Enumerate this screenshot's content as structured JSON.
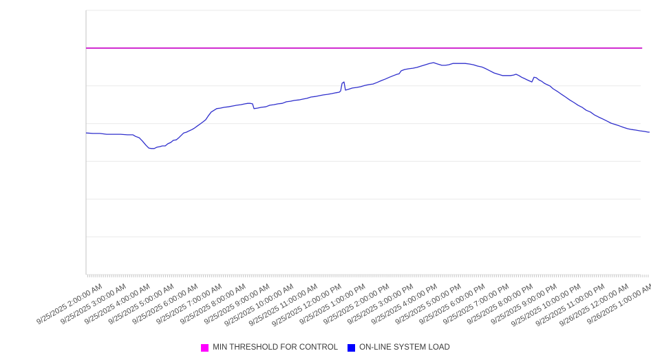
{
  "legend": {
    "items": [
      {
        "label": "MIN THRESHOLD FOR CONTROL",
        "color": "#ff00ff"
      },
      {
        "label": "ON-LINE SYSTEM LOAD",
        "color": "#0000ff"
      }
    ]
  },
  "chart_data": {
    "type": "line",
    "title": "",
    "xlabel": "",
    "ylabel": "",
    "grid": "horizontal",
    "legend_position": "bottom-center",
    "y_axis_labels_shown": false,
    "y_unit": "percent of plot height (chart shows no y-axis tick labels)",
    "x_unit": "hours since 9/25/2025 12:00:00 AM",
    "x_range": [
      1.51,
      25.06
    ],
    "ylim": [
      0,
      100
    ],
    "x_tick_hours": [
      2,
      3,
      4,
      5,
      6,
      7,
      8,
      9,
      10,
      11,
      12,
      13,
      14,
      15,
      16,
      17,
      18,
      19,
      20,
      21,
      22,
      23,
      24,
      25
    ],
    "x_tick_labels": [
      "9/25/2025 2:00:00 AM",
      "9/25/2025 3:00:00 AM",
      "9/25/2025 4:00:00 AM",
      "9/25/2025 5:00:00 AM",
      "9/25/2025 6:00:00 AM",
      "9/25/2025 7:00:00 AM",
      "9/25/2025 8:00:00 AM",
      "9/25/2025 9:00:00 AM",
      "9/25/2025 10:00:00 AM",
      "9/25/2025 11:00:00 AM",
      "9/25/2025 12:00:00 PM",
      "9/25/2025 1:00:00 PM",
      "9/25/2025 2:00:00 PM",
      "9/25/2025 3:00:00 PM",
      "9/25/2025 4:00:00 PM",
      "9/25/2025 5:00:00 PM",
      "9/25/2025 6:00:00 PM",
      "9/25/2025 7:00:00 PM",
      "9/25/2025 8:00:00 PM",
      "9/25/2025 9:00:00 PM",
      "9/25/2025 10:00:00 PM",
      "9/25/2025 11:00:00 PM",
      "9/26/2025 12:00:00 AM",
      "9/26/2025 1:00:00 AM"
    ],
    "series": [
      {
        "name": "MIN THRESHOLD FOR CONTROL",
        "type": "threshold-line",
        "color": "#cf25cf",
        "value": 85.7,
        "x_span": [
          1.51,
          24.75
        ]
      },
      {
        "name": "ON-LINE SYSTEM LOAD",
        "type": "line",
        "color": "#2e2ecc",
        "points": [
          [
            1.51,
            53.6
          ],
          [
            1.8,
            53.4
          ],
          [
            2.09,
            53.4
          ],
          [
            2.37,
            53.1
          ],
          [
            2.66,
            53.1
          ],
          [
            2.95,
            53.1
          ],
          [
            3.24,
            52.9
          ],
          [
            3.47,
            52.9
          ],
          [
            3.58,
            52.3
          ],
          [
            3.73,
            51.8
          ],
          [
            3.87,
            50.5
          ],
          [
            4.01,
            49.0
          ],
          [
            4.13,
            47.9
          ],
          [
            4.24,
            47.7
          ],
          [
            4.36,
            47.7
          ],
          [
            4.47,
            48.2
          ],
          [
            4.59,
            48.4
          ],
          [
            4.7,
            48.7
          ],
          [
            4.82,
            48.7
          ],
          [
            4.93,
            49.5
          ],
          [
            5.05,
            50.0
          ],
          [
            5.16,
            50.8
          ],
          [
            5.28,
            51.0
          ],
          [
            5.39,
            51.8
          ],
          [
            5.51,
            52.9
          ],
          [
            5.59,
            53.6
          ],
          [
            5.71,
            53.9
          ],
          [
            5.82,
            54.4
          ],
          [
            5.94,
            54.9
          ],
          [
            6.05,
            55.5
          ],
          [
            6.17,
            56.3
          ],
          [
            6.28,
            57.0
          ],
          [
            6.4,
            57.8
          ],
          [
            6.51,
            58.6
          ],
          [
            6.63,
            60.2
          ],
          [
            6.74,
            61.5
          ],
          [
            6.86,
            62.2
          ],
          [
            6.97,
            62.8
          ],
          [
            7.12,
            63.0
          ],
          [
            7.29,
            63.3
          ],
          [
            7.46,
            63.5
          ],
          [
            7.64,
            63.8
          ],
          [
            7.81,
            64.1
          ],
          [
            7.98,
            64.3
          ],
          [
            8.15,
            64.6
          ],
          [
            8.27,
            64.8
          ],
          [
            8.38,
            64.8
          ],
          [
            8.47,
            64.6
          ],
          [
            8.53,
            62.8
          ],
          [
            8.67,
            63.0
          ],
          [
            8.84,
            63.3
          ],
          [
            9.02,
            63.5
          ],
          [
            9.19,
            64.1
          ],
          [
            9.36,
            64.3
          ],
          [
            9.53,
            64.6
          ],
          [
            9.71,
            64.8
          ],
          [
            9.88,
            65.4
          ],
          [
            10.05,
            65.6
          ],
          [
            10.22,
            65.9
          ],
          [
            10.4,
            66.1
          ],
          [
            10.57,
            66.4
          ],
          [
            10.74,
            66.7
          ],
          [
            10.91,
            67.2
          ],
          [
            11.09,
            67.4
          ],
          [
            11.26,
            67.7
          ],
          [
            11.43,
            68.0
          ],
          [
            11.6,
            68.2
          ],
          [
            11.78,
            68.5
          ],
          [
            11.95,
            68.8
          ],
          [
            12.09,
            69.0
          ],
          [
            12.15,
            69.5
          ],
          [
            12.21,
            72.4
          ],
          [
            12.29,
            72.9
          ],
          [
            12.35,
            69.8
          ],
          [
            12.47,
            70.1
          ],
          [
            12.64,
            70.6
          ],
          [
            12.81,
            70.8
          ],
          [
            12.98,
            71.1
          ],
          [
            13.16,
            71.6
          ],
          [
            13.33,
            71.9
          ],
          [
            13.5,
            72.1
          ],
          [
            13.67,
            72.7
          ],
          [
            13.85,
            73.4
          ],
          [
            14.02,
            74.0
          ],
          [
            14.19,
            74.7
          ],
          [
            14.36,
            75.3
          ],
          [
            14.51,
            75.8
          ],
          [
            14.59,
            76.0
          ],
          [
            14.68,
            77.1
          ],
          [
            14.82,
            77.6
          ],
          [
            15.0,
            77.9
          ],
          [
            15.17,
            78.1
          ],
          [
            15.34,
            78.4
          ],
          [
            15.51,
            78.9
          ],
          [
            15.69,
            79.4
          ],
          [
            15.86,
            79.9
          ],
          [
            16.03,
            80.2
          ],
          [
            16.2,
            79.7
          ],
          [
            16.38,
            79.2
          ],
          [
            16.52,
            79.2
          ],
          [
            16.66,
            79.4
          ],
          [
            16.84,
            79.9
          ],
          [
            17.01,
            79.9
          ],
          [
            17.18,
            79.9
          ],
          [
            17.35,
            79.9
          ],
          [
            17.53,
            79.7
          ],
          [
            17.7,
            79.4
          ],
          [
            17.87,
            78.9
          ],
          [
            18.04,
            78.6
          ],
          [
            18.22,
            77.9
          ],
          [
            18.39,
            77.1
          ],
          [
            18.56,
            76.3
          ],
          [
            18.73,
            75.8
          ],
          [
            18.91,
            75.3
          ],
          [
            19.08,
            75.3
          ],
          [
            19.25,
            75.3
          ],
          [
            19.37,
            75.5
          ],
          [
            19.48,
            75.8
          ],
          [
            19.6,
            75.3
          ],
          [
            19.71,
            74.7
          ],
          [
            19.83,
            74.2
          ],
          [
            19.94,
            73.7
          ],
          [
            20.06,
            73.2
          ],
          [
            20.14,
            72.9
          ],
          [
            20.23,
            74.7
          ],
          [
            20.32,
            74.5
          ],
          [
            20.43,
            73.7
          ],
          [
            20.54,
            73.2
          ],
          [
            20.66,
            72.4
          ],
          [
            20.77,
            71.9
          ],
          [
            20.89,
            71.4
          ],
          [
            21.03,
            70.3
          ],
          [
            21.21,
            69.3
          ],
          [
            21.38,
            68.2
          ],
          [
            21.55,
            67.2
          ],
          [
            21.72,
            66.1
          ],
          [
            21.9,
            65.1
          ],
          [
            22.07,
            64.1
          ],
          [
            22.24,
            63.3
          ],
          [
            22.41,
            62.2
          ],
          [
            22.59,
            61.5
          ],
          [
            22.76,
            60.4
          ],
          [
            22.93,
            59.6
          ],
          [
            23.1,
            58.9
          ],
          [
            23.28,
            58.1
          ],
          [
            23.45,
            57.3
          ],
          [
            23.62,
            56.8
          ],
          [
            23.79,
            56.3
          ],
          [
            23.97,
            55.7
          ],
          [
            24.14,
            55.2
          ],
          [
            24.31,
            54.9
          ],
          [
            24.48,
            54.7
          ],
          [
            24.66,
            54.4
          ],
          [
            24.83,
            54.2
          ],
          [
            25.0,
            53.9
          ],
          [
            25.06,
            53.9
          ]
        ]
      }
    ]
  }
}
